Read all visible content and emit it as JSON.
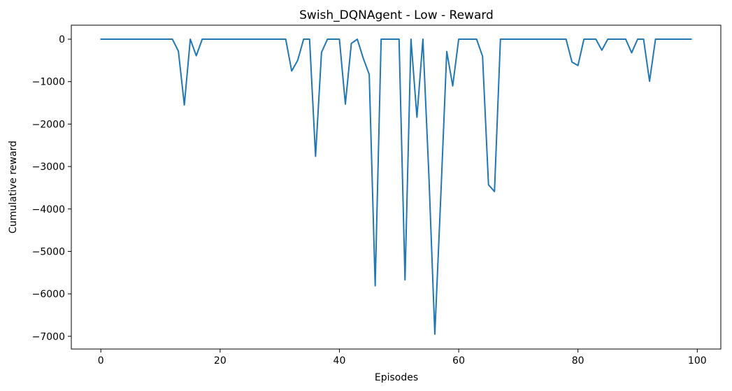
{
  "chart_data": {
    "type": "line",
    "title": "Swish_DQNAgent - Low - Reward",
    "xlabel": "Episodes",
    "ylabel": "Cumulative reward",
    "xlim": [
      -4.95,
      103.95
    ],
    "ylim": [
      -7300,
      330
    ],
    "x_ticks": [
      0,
      20,
      40,
      60,
      80,
      100
    ],
    "y_ticks": [
      0,
      -1000,
      -2000,
      -3000,
      -4000,
      -5000,
      -6000,
      -7000
    ],
    "x_tick_labels": [
      "0",
      "20",
      "40",
      "60",
      "80",
      "100"
    ],
    "y_tick_labels": [
      "0",
      "−1000",
      "−2000",
      "−3000",
      "−4000",
      "−5000",
      "−6000",
      "−7000"
    ],
    "grid": false,
    "colors": {
      "line": "#1f77b4",
      "axes": "#000000",
      "background": "#ffffff"
    },
    "series": [
      {
        "x": [
          0,
          1,
          2,
          3,
          4,
          5,
          6,
          7,
          8,
          9,
          10,
          11,
          12,
          13,
          14,
          15,
          16,
          17,
          18,
          19,
          20,
          21,
          22,
          23,
          24,
          25,
          26,
          27,
          28,
          29,
          30,
          31,
          32,
          33,
          34,
          35,
          36,
          37,
          38,
          39,
          40,
          41,
          42,
          43,
          44,
          45,
          46,
          47,
          48,
          49,
          50,
          51,
          52,
          53,
          54,
          55,
          56,
          57,
          58,
          59,
          60,
          61,
          62,
          63,
          64,
          65,
          66,
          67,
          68,
          69,
          70,
          71,
          72,
          73,
          74,
          75,
          76,
          77,
          78,
          79,
          80,
          81,
          82,
          83,
          84,
          85,
          86,
          87,
          88,
          89,
          90,
          91,
          92,
          93,
          94,
          95,
          96,
          97,
          98,
          99
        ],
        "values": [
          0,
          0,
          0,
          0,
          0,
          0,
          0,
          0,
          0,
          0,
          0,
          0,
          0,
          -280,
          -1550,
          0,
          -390,
          0,
          0,
          0,
          0,
          0,
          0,
          0,
          0,
          0,
          0,
          0,
          0,
          0,
          0,
          0,
          -750,
          -500,
          0,
          0,
          -2760,
          -310,
          0,
          0,
          0,
          -1530,
          -100,
          0,
          -450,
          -830,
          -5810,
          0,
          0,
          0,
          0,
          -5670,
          0,
          -1840,
          0,
          -3200,
          -6950,
          -3700,
          -290,
          -1100,
          0,
          0,
          0,
          0,
          -400,
          -3430,
          -3590,
          0,
          0,
          0,
          0,
          0,
          0,
          0,
          0,
          0,
          0,
          0,
          0,
          -540,
          -620,
          0,
          0,
          0,
          -260,
          0,
          0,
          0,
          0,
          -320,
          0,
          0,
          -990,
          0,
          0,
          0,
          0,
          0,
          0,
          0
        ]
      }
    ]
  }
}
